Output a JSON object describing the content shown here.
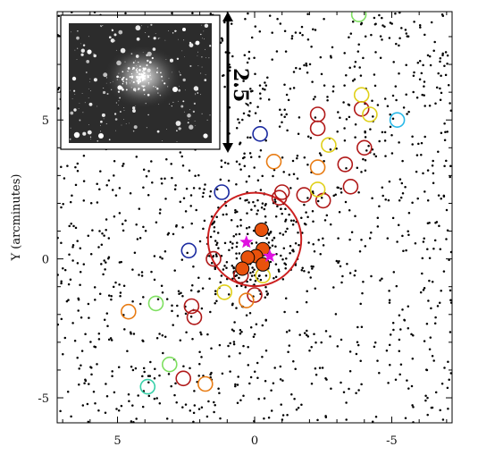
{
  "chart_data": {
    "type": "scatter",
    "title": "",
    "xlabel": "",
    "ylabel": "Y (arcminutes)",
    "xlim": [
      7.2,
      -7.2
    ],
    "ylim": [
      -5.9,
      8.9
    ],
    "x_reversed": true,
    "x_ticks": [
      5,
      0,
      -5
    ],
    "y_ticks": [
      5,
      0,
      -5
    ],
    "tick_labels_x": [
      "5",
      "0",
      "-5"
    ],
    "tick_labels_y": [
      "5",
      "0",
      "-5"
    ],
    "grid": false,
    "inset_image": {
      "kind": "star-cluster-photo",
      "position": "top-left"
    },
    "scale_bar": {
      "label": "2.5′",
      "length_arcmin": 2.5,
      "orientation": "vertical"
    },
    "cluster_radius_circle": {
      "x": 0.0,
      "y": 0.7,
      "r": 1.7,
      "color": "#cc2020"
    },
    "field_stars": {
      "count": 1400,
      "color": "#000000",
      "distribution": "uniform-with-central-concentration"
    },
    "filled_members": {
      "color": "#e8520c",
      "points": [
        {
          "x": -0.25,
          "y": 1.05
        },
        {
          "x": -0.3,
          "y": 0.35
        },
        {
          "x": -0.05,
          "y": 0.1
        },
        {
          "x": 0.25,
          "y": 0.05
        },
        {
          "x": 0.45,
          "y": -0.35
        },
        {
          "x": -0.3,
          "y": -0.2
        }
      ]
    },
    "star_markers": {
      "color": "#e010e0",
      "points": [
        {
          "x": 0.3,
          "y": 0.6
        },
        {
          "x": -0.55,
          "y": 0.1
        }
      ]
    },
    "open_circle_series": [
      {
        "color": "#b01818",
        "points": [
          {
            "x": -2.3,
            "y": 5.2
          },
          {
            "x": -3.9,
            "y": 5.4
          },
          {
            "x": -2.3,
            "y": 4.7
          },
          {
            "x": -4.0,
            "y": 4.0
          },
          {
            "x": -3.3,
            "y": 3.4
          },
          {
            "x": -1.0,
            "y": 2.4
          },
          {
            "x": -1.8,
            "y": 2.3
          },
          {
            "x": -0.9,
            "y": 2.2
          },
          {
            "x": -2.5,
            "y": 2.1
          },
          {
            "x": -3.5,
            "y": 2.6
          },
          {
            "x": 1.5,
            "y": 0.0
          },
          {
            "x": 0.5,
            "y": -0.6
          },
          {
            "x": 0.0,
            "y": -1.3
          },
          {
            "x": 2.3,
            "y": -1.7
          },
          {
            "x": 2.2,
            "y": -2.1
          },
          {
            "x": 2.6,
            "y": -4.3
          }
        ]
      },
      {
        "color": "#e87c14",
        "points": [
          {
            "x": -0.7,
            "y": 3.5
          },
          {
            "x": -2.3,
            "y": 3.3
          },
          {
            "x": 0.3,
            "y": -1.5
          },
          {
            "x": 4.6,
            "y": -1.9
          },
          {
            "x": 1.8,
            "y": -4.5
          }
        ]
      },
      {
        "color": "#e0d01a",
        "points": [
          {
            "x": -3.9,
            "y": 5.9
          },
          {
            "x": -4.2,
            "y": 5.2
          },
          {
            "x": -2.7,
            "y": 4.1
          },
          {
            "x": -2.3,
            "y": 2.5
          },
          {
            "x": 1.1,
            "y": -1.2
          },
          {
            "x": -0.3,
            "y": -0.6
          }
        ]
      },
      {
        "color": "#1a2aa0",
        "points": [
          {
            "x": -0.2,
            "y": 4.5
          },
          {
            "x": 1.2,
            "y": 2.4
          },
          {
            "x": 2.4,
            "y": 0.3
          }
        ]
      },
      {
        "color": "#7ee060",
        "points": [
          {
            "x": 3.6,
            "y": -1.6
          },
          {
            "x": 3.1,
            "y": -3.8
          },
          {
            "x": -3.8,
            "y": 8.8
          }
        ]
      },
      {
        "color": "#28b8e8",
        "points": [
          {
            "x": -5.2,
            "y": 5.0
          }
        ]
      },
      {
        "color": "#38d0a8",
        "points": [
          {
            "x": 3.9,
            "y": -4.6
          }
        ]
      }
    ]
  }
}
